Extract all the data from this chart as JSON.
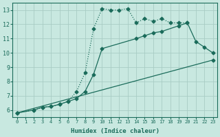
{
  "xlabel": "Humidex (Indice chaleur)",
  "ylabel": "",
  "bg_color": "#c8e8e0",
  "grid_color": "#a8ccc4",
  "line_color": "#1a6b5a",
  "xlim": [
    -0.5,
    23.5
  ],
  "ylim": [
    5.5,
    13.5
  ],
  "xticks": [
    0,
    1,
    2,
    3,
    4,
    5,
    6,
    7,
    8,
    9,
    10,
    11,
    12,
    13,
    14,
    15,
    16,
    17,
    18,
    19,
    20,
    21,
    22,
    23
  ],
  "yticks": [
    6,
    7,
    8,
    9,
    10,
    11,
    12,
    13
  ],
  "series": [
    {
      "x": [
        0,
        2,
        3,
        4,
        5,
        6,
        7,
        8,
        9,
        10,
        11,
        12,
        13,
        14,
        15,
        16,
        17,
        18,
        19,
        20
      ],
      "y": [
        5.8,
        6.0,
        6.2,
        6.25,
        6.4,
        6.6,
        7.3,
        8.6,
        11.7,
        13.1,
        13.0,
        13.0,
        13.1,
        12.1,
        12.4,
        12.2,
        12.4,
        12.1,
        12.1,
        12.1
      ],
      "marker": "D",
      "markersize": 2.5,
      "linestyle": ":"
    },
    {
      "x": [
        0,
        2,
        3,
        4,
        5,
        6,
        7,
        8,
        9,
        10,
        14,
        15,
        16,
        17,
        19,
        20,
        21,
        22,
        23
      ],
      "y": [
        5.8,
        6.0,
        6.2,
        6.25,
        6.4,
        6.6,
        6.8,
        7.3,
        8.5,
        10.3,
        11.0,
        11.2,
        11.4,
        11.5,
        11.9,
        12.1,
        10.8,
        10.4,
        10.0
      ],
      "marker": "D",
      "markersize": 2.5,
      "linestyle": "-"
    },
    {
      "x": [
        0,
        23
      ],
      "y": [
        5.8,
        9.5
      ],
      "marker": "D",
      "markersize": 2.5,
      "linestyle": "-"
    }
  ]
}
